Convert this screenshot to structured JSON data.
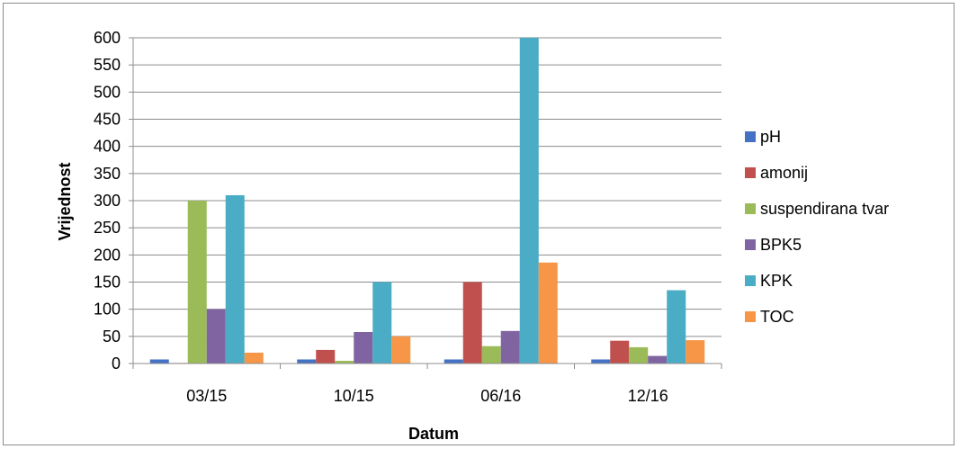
{
  "chart_data": {
    "type": "bar",
    "title": "",
    "xlabel": "Datum",
    "ylabel": "Vrijednost",
    "categories": [
      "03/15",
      "10/15",
      "06/16",
      "12/16"
    ],
    "ylim": [
      0,
      600
    ],
    "yticks": [
      0,
      50,
      100,
      150,
      200,
      250,
      300,
      350,
      400,
      450,
      500,
      550,
      600
    ],
    "grid": true,
    "legend_position": "right",
    "series": [
      {
        "name": "pH",
        "color": "#4472c4",
        "values": [
          7.5,
          7.5,
          7.5,
          7.5
        ]
      },
      {
        "name": "amonij",
        "color": "#c0504d",
        "values": [
          1,
          25,
          150,
          42
        ]
      },
      {
        "name": "suspendirana tvar",
        "color": "#9bbb59",
        "values": [
          300,
          5,
          32,
          30
        ]
      },
      {
        "name": "BPK5",
        "color": "#8064a2",
        "values": [
          100,
          58,
          60,
          14
        ]
      },
      {
        "name": "KPK",
        "color": "#4bacc6",
        "values": [
          310,
          150,
          600,
          135
        ]
      },
      {
        "name": "TOC",
        "color": "#f79646",
        "values": [
          20,
          50,
          186,
          43
        ]
      }
    ]
  }
}
